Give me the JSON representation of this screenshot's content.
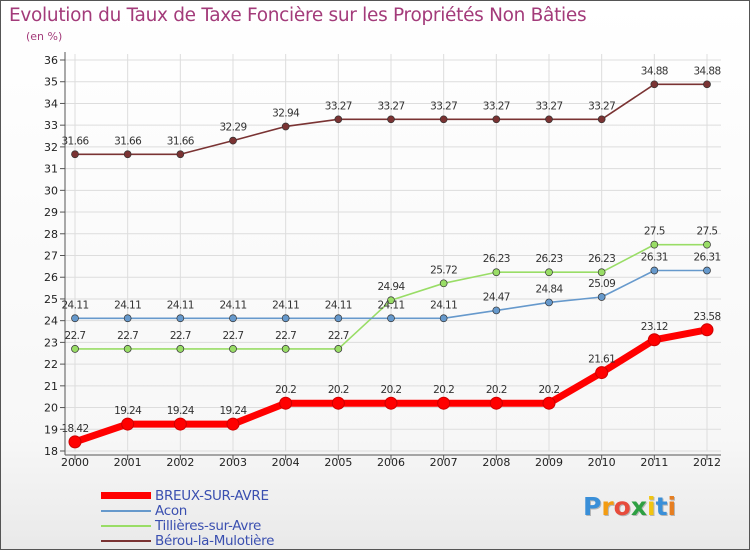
{
  "header": {
    "title": "Evolution du Taux de Taxe Foncière sur les Propriétés Non Bâties",
    "unit": "(en %)"
  },
  "chart_data": {
    "type": "line",
    "title": "Evolution du Taux de Taxe Foncière sur les Propriétés Non Bâties",
    "ylabel": "(en %)",
    "xlabel": "",
    "x": [
      "2000",
      "2001",
      "2002",
      "2003",
      "2004",
      "2005",
      "2006",
      "2007",
      "2008",
      "2009",
      "2010",
      "2011",
      "2012"
    ],
    "ylim": [
      18,
      36
    ],
    "yticks": [
      18,
      19,
      20,
      21,
      22,
      23,
      24,
      25,
      26,
      27,
      28,
      29,
      30,
      31,
      32,
      33,
      34,
      35,
      36
    ],
    "series": [
      {
        "name": "BREUX-SUR-AVRE",
        "color": "#ff0000",
        "values": [
          18.42,
          19.24,
          19.24,
          19.24,
          20.2,
          20.2,
          20.2,
          20.2,
          20.2,
          20.2,
          21.61,
          23.12,
          23.58
        ],
        "labels": [
          "18.42",
          "19.24",
          "19.24",
          "19.24",
          "20.2",
          "20.2",
          "20.2",
          "20.2",
          "20.2",
          "20.2",
          "21.61",
          "23.12",
          "23.58"
        ]
      },
      {
        "name": "Acon",
        "color": "#6699cc",
        "values": [
          24.11,
          24.11,
          24.11,
          24.11,
          24.11,
          24.11,
          24.11,
          24.11,
          24.47,
          24.84,
          25.09,
          26.31,
          26.31
        ],
        "labels": [
          "24.11",
          "24.11",
          "24.11",
          "24.11",
          "24.11",
          "24.11",
          "24.11",
          "24.11",
          "24.47",
          "24.84",
          "25.09",
          "26.31",
          "26.31"
        ]
      },
      {
        "name": "Tillières-sur-Avre",
        "color": "#99dd66",
        "values": [
          22.7,
          22.7,
          22.7,
          22.7,
          22.7,
          22.7,
          24.94,
          25.72,
          26.23,
          26.23,
          26.23,
          27.5,
          27.5
        ],
        "labels": [
          "22.7",
          "22.7",
          "22.7",
          "22.7",
          "22.7",
          "22.7",
          "24.94",
          "25.72",
          "26.23",
          "26.23",
          "26.23",
          "27.5",
          "27.5"
        ]
      },
      {
        "name": "Bérou-la-Mulotière",
        "color": "#7a3333",
        "values": [
          31.66,
          31.66,
          31.66,
          32.29,
          32.94,
          33.27,
          33.27,
          33.27,
          33.27,
          33.27,
          33.27,
          34.88,
          34.88
        ],
        "labels": [
          "31.66",
          "31.66",
          "31.66",
          "32.29",
          "32.94",
          "33.27",
          "33.27",
          "33.27",
          "33.27",
          "33.27",
          "33.27",
          "34.88",
          "34.88"
        ]
      }
    ],
    "grid": true,
    "legend": "bottom-left"
  },
  "legend": {
    "items": [
      {
        "label": "BREUX-SUR-AVRE",
        "color": "#ff0000"
      },
      {
        "label": "Acon",
        "color": "#6699cc"
      },
      {
        "label": "Tillières-sur-Avre",
        "color": "#99dd66"
      },
      {
        "label": "Bérou-la-Mulotière",
        "color": "#7a3333"
      }
    ]
  },
  "logo": {
    "letters": [
      {
        "ch": "P",
        "color": "#3a8fd8"
      },
      {
        "ch": "r",
        "color": "#f39c12"
      },
      {
        "ch": "o",
        "color": "#e74c3c"
      },
      {
        "ch": "x",
        "color": "#2ea043"
      },
      {
        "ch": "i",
        "color": "#f1c40f"
      },
      {
        "ch": "t",
        "color": "#3a8fd8"
      },
      {
        "ch": "i",
        "color": "#e67e22"
      }
    ]
  }
}
